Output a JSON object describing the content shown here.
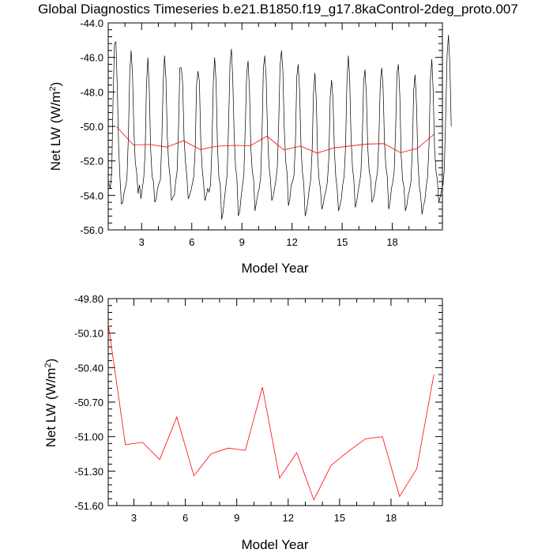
{
  "title": "Global Diagnostics Timeseries b.e21.B1850.f19_g17.8kaControl-2deg_proto.007",
  "chart_data": [
    {
      "type": "line",
      "xlabel": "Model Year",
      "ylabel": "Net LW (W/m",
      "ylabel_sup": "2",
      "ylabel_end": ")",
      "xlim": [
        1,
        21
      ],
      "ylim": [
        -56.0,
        -44.0
      ],
      "xticks": [
        3,
        6,
        9,
        12,
        15,
        18
      ],
      "yticks": [
        "-56.0",
        "-54.0",
        "-52.0",
        "-50.0",
        "-48.0",
        "-46.0",
        "-44.0"
      ],
      "grid": false,
      "colors": {
        "monthly": "#000000",
        "annual": "#ff0000"
      },
      "monthly": {
        "x_start": 1.04,
        "x_step": 0.0833,
        "values": [
          -53.3,
          -53.6,
          -52.7,
          -48.5,
          -45.2,
          -45.1,
          -47.6,
          -51.2,
          -53.0,
          -54.5,
          -54.4,
          -53.8,
          -53.5,
          -53.0,
          -50.6,
          -46.8,
          -45.6,
          -47.1,
          -50.4,
          -52.1,
          -52.7,
          -53.9,
          -53.4,
          -54.2,
          -53.6,
          -53.0,
          -51.6,
          -47.6,
          -46.0,
          -47.8,
          -51.3,
          -52.9,
          -53.2,
          -54.4,
          -54.2,
          -53.6,
          -53.3,
          -53.1,
          -50.9,
          -47.4,
          -45.9,
          -47.3,
          -50.6,
          -52.2,
          -53.0,
          -54.3,
          -54.1,
          -54.0,
          -53.2,
          -52.6,
          -50.2,
          -46.6,
          -46.6,
          -47.5,
          -50.7,
          -52.0,
          -52.9,
          -54.2,
          -54.0,
          -53.7,
          -53.3,
          -52.9,
          -51.3,
          -47.6,
          -46.8,
          -47.4,
          -50.8,
          -52.4,
          -53.3,
          -54.3,
          -54.0,
          -53.6,
          -53.8,
          -53.4,
          -51.3,
          -47.5,
          -46.0,
          -47.4,
          -51.2,
          -52.9,
          -53.4,
          -55.4,
          -55.0,
          -54.2,
          -53.5,
          -52.7,
          -49.8,
          -46.4,
          -45.5,
          -47.2,
          -50.5,
          -52.4,
          -53.0,
          -55.2,
          -54.9,
          -54.1,
          -53.4,
          -52.8,
          -50.0,
          -46.9,
          -46.2,
          -47.9,
          -51.2,
          -52.6,
          -53.1,
          -54.9,
          -54.4,
          -53.9,
          -53.6,
          -53.0,
          -50.6,
          -46.6,
          -45.9,
          -47.2,
          -50.4,
          -52.3,
          -53.0,
          -54.3,
          -54.1,
          -53.6,
          -53.1,
          -52.4,
          -49.8,
          -46.5,
          -45.6,
          -46.8,
          -50.1,
          -52.0,
          -52.7,
          -54.6,
          -54.2,
          -53.4,
          -53.2,
          -52.8,
          -51.0,
          -47.1,
          -46.4,
          -47.9,
          -51.1,
          -52.6,
          -53.3,
          -55.2,
          -54.9,
          -54.3,
          -53.6,
          -53.1,
          -51.4,
          -48.1,
          -46.9,
          -48.5,
          -51.8,
          -53.1,
          -53.6,
          -54.8,
          -54.5,
          -54.0,
          -53.7,
          -53.2,
          -51.9,
          -48.3,
          -47.3,
          -48.4,
          -51.4,
          -52.9,
          -53.6,
          -54.9,
          -54.6,
          -54.2,
          -53.4,
          -52.9,
          -51.2,
          -47.5,
          -45.9,
          -47.2,
          -50.7,
          -52.4,
          -53.1,
          -54.7,
          -54.4,
          -53.8,
          -53.3,
          -52.8,
          -50.9,
          -47.4,
          -46.7,
          -48.2,
          -51.2,
          -52.6,
          -53.0,
          -54.4,
          -54.2,
          -53.8,
          -53.1,
          -52.6,
          -50.7,
          -47.5,
          -46.6,
          -47.7,
          -50.9,
          -52.3,
          -52.9,
          -54.8,
          -54.4,
          -53.6,
          -53.2,
          -52.6,
          -50.2,
          -46.9,
          -46.4,
          -48.2,
          -51.7,
          -53.1,
          -53.5,
          -54.9,
          -54.6,
          -54.0,
          -53.7,
          -53.2,
          -51.4,
          -47.9,
          -47.0,
          -48.7,
          -52.0,
          -53.4,
          -54.0,
          -55.1,
          -54.6,
          -54.3,
          -53.5,
          -52.9,
          -51.0,
          -47.3,
          -46.1,
          -47.9,
          -51.3,
          -52.6,
          -53.1,
          -54.4,
          -54.1,
          -53.7,
          -53.4,
          -52.5,
          -49.4,
          -45.8,
          -44.7,
          -46.5,
          -50.0
        ]
      },
      "annual": {
        "x": [
          1.5,
          2.5,
          3.5,
          4.5,
          5.5,
          6.5,
          7.5,
          8.5,
          9.5,
          10.5,
          11.5,
          12.5,
          13.5,
          14.5,
          15.5,
          16.5,
          17.5,
          18.5,
          19.5,
          20.5
        ],
        "values": [
          -50.02,
          -51.07,
          -51.05,
          -51.2,
          -50.83,
          -51.34,
          -51.15,
          -51.1,
          -51.12,
          -50.57,
          -51.36,
          -51.14,
          -51.55,
          -51.25,
          -51.13,
          -51.02,
          -51.0,
          -51.52,
          -51.28,
          -50.46
        ]
      }
    },
    {
      "type": "line",
      "xlabel": "Model Year",
      "ylabel": "Net LW (W/m",
      "ylabel_sup": "2",
      "ylabel_end": ")",
      "xlim": [
        1.5,
        21
      ],
      "ylim": [
        -51.6,
        -49.8
      ],
      "xticks": [
        3,
        6,
        9,
        12,
        15,
        18
      ],
      "yticks": [
        "-51.60",
        "-51.30",
        "-51.00",
        "-50.70",
        "-50.40",
        "-50.10",
        "-49.80"
      ],
      "grid": false,
      "colors": {
        "annual": "#ff0000"
      },
      "annual": {
        "x": [
          1.5,
          2.5,
          3.5,
          4.5,
          5.5,
          6.5,
          7.5,
          8.5,
          9.5,
          10.5,
          11.5,
          12.5,
          13.5,
          14.5,
          15.5,
          16.5,
          17.5,
          18.5,
          19.5,
          20.5
        ],
        "values": [
          -50.02,
          -51.07,
          -51.05,
          -51.2,
          -50.83,
          -51.34,
          -51.15,
          -51.1,
          -51.12,
          -50.57,
          -51.36,
          -51.14,
          -51.55,
          -51.25,
          -51.13,
          -51.02,
          -51.0,
          -51.52,
          -51.28,
          -50.46
        ]
      }
    }
  ]
}
